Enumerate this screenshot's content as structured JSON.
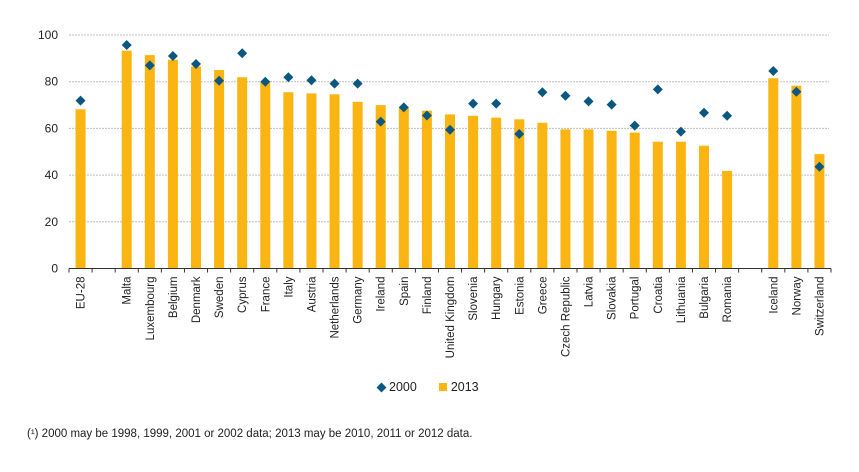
{
  "chart_data": {
    "type": "bar",
    "title": "",
    "xlabel": "",
    "ylabel": "",
    "ylim": [
      0,
      100
    ],
    "yticks": [
      0,
      20,
      40,
      60,
      80,
      100
    ],
    "grid": true,
    "legend_position": "bottom-center",
    "categories": [
      "EU-28",
      "",
      "Malta",
      "Luxembourg",
      "Belgium",
      "Denmark",
      "Sweden",
      "Cyprus",
      "France",
      "Italy",
      "Austria",
      "Netherlands",
      "Germany",
      "Ireland",
      "Spain",
      "Finland",
      "United Kingdom",
      "Slovenia",
      "Hungary",
      "Estonia",
      "Greece",
      "Czech Republic",
      "Latvia",
      "Slovakia",
      "Portugal",
      "Croatia",
      "Lithuania",
      "Bulgaria",
      "Romania",
      "",
      "Iceland",
      "Norway",
      "Switzerland"
    ],
    "series": [
      {
        "name": "2000",
        "type": "scatter",
        "marker": "diamond",
        "color": "#0a5780",
        "values": [
          71.9,
          null,
          95.7,
          87.0,
          91.0,
          87.6,
          80.4,
          92.2,
          80.0,
          81.9,
          80.6,
          79.2,
          79.2,
          62.9,
          69.0,
          65.5,
          59.4,
          70.6,
          70.6,
          57.6,
          75.5,
          74.0,
          71.6,
          70.2,
          61.2,
          76.7,
          58.6,
          66.7,
          65.4,
          null,
          84.6,
          75.7,
          43.6
        ]
      },
      {
        "name": "2013",
        "type": "bar",
        "color": "#fbb513",
        "values": [
          68.2,
          null,
          93.3,
          91.4,
          89.4,
          86.5,
          85.0,
          81.9,
          79.7,
          75.5,
          75.0,
          74.6,
          71.4,
          70.0,
          69.0,
          67.6,
          66.0,
          65.4,
          64.6,
          63.9,
          62.4,
          59.6,
          59.6,
          59.0,
          58.2,
          54.3,
          54.3,
          52.6,
          41.8,
          null,
          81.5,
          78.3,
          49.0
        ]
      }
    ],
    "footnote": "(¹) 2000 may be 1998, 1999, 2001 or 2002 data; 2013 may be 2010, 2011 or 2012 data."
  },
  "legend": {
    "items": [
      {
        "label": "2000",
        "color": "#0a5780",
        "marker": "diamond"
      },
      {
        "label": "2013",
        "color": "#fbb513",
        "marker": "square"
      }
    ]
  }
}
